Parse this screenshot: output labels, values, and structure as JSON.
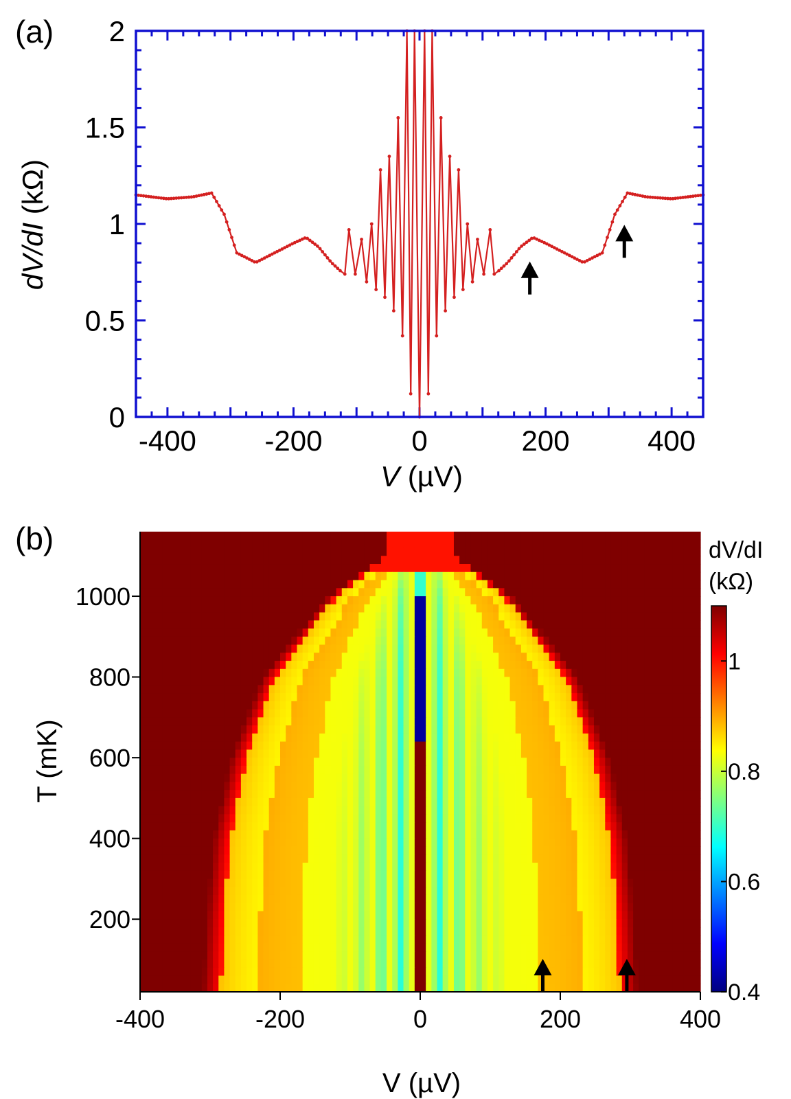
{
  "chart_data": [
    {
      "panel_label": "(a)",
      "type": "line",
      "xlabel_italic": "V",
      "xlabel_unit": " (µV)",
      "ylabel_italic": "dV/dI",
      "ylabel_unit": " (kΩ)",
      "xlim": [
        -450,
        450
      ],
      "ylim": [
        0,
        2
      ],
      "xticks": [
        -400,
        -200,
        0,
        200,
        400
      ],
      "yticks": [
        0,
        0.5,
        1,
        1.5,
        2
      ],
      "ytick_labels": [
        "0",
        "0.5",
        "1",
        "1.5",
        "2"
      ],
      "series_color": "#d42020",
      "frame_color": "#1010d0",
      "grid": false,
      "envelope": {
        "v": [
          0,
          30,
          60,
          80,
          100,
          120,
          140,
          160,
          180,
          200,
          230,
          260,
          290,
          310,
          330,
          360,
          400,
          450
        ],
        "base": [
          0.5,
          0.62,
          0.68,
          0.7,
          0.72,
          0.74,
          0.8,
          0.88,
          0.93,
          0.9,
          0.85,
          0.8,
          0.85,
          1.05,
          1.16,
          1.14,
          1.13,
          1.15
        ]
      },
      "oscillation_peaks_v": [
        8,
        20,
        34,
        48,
        62,
        76,
        92,
        112
      ],
      "oscillation_peaks_value": [
        2.0,
        2.0,
        1.55,
        1.35,
        1.28,
        1.0,
        0.92,
        0.97
      ],
      "oscillation_dips_value": [
        0.05,
        0.12,
        0.42,
        0.55,
        0.62,
        0.66,
        0.7,
        0.74
      ],
      "annotations": [
        {
          "type": "arrow-up",
          "x": 175,
          "y": 0.67
        },
        {
          "type": "arrow-up",
          "x": 325,
          "y": 0.86
        }
      ]
    },
    {
      "panel_label": "(b)",
      "type": "heatmap",
      "xlabel": "V (µV)",
      "ylabel": "T (mK)",
      "xlim": [
        -400,
        400
      ],
      "ylim": [
        20,
        1160
      ],
      "xticks": [
        -400,
        -200,
        0,
        200,
        400
      ],
      "yticks": [
        200,
        400,
        600,
        800,
        1000
      ],
      "colorbar_label_line1": "dV/dI",
      "colorbar_label_line2": "(kΩ)",
      "colorbar_range": [
        0.4,
        1.1
      ],
      "colorbar_ticks": [
        0.4,
        0.6,
        0.8,
        1
      ],
      "colormap": [
        "#00007f",
        "#0000ff",
        "#0080ff",
        "#00ffff",
        "#80ff80",
        "#ffff00",
        "#ff8000",
        "#ff0000",
        "#7f0000"
      ],
      "gap_edge_mK": [
        [
          20,
          310
        ],
        [
          200,
          305
        ],
        [
          400,
          295
        ],
        [
          600,
          270
        ],
        [
          800,
          225
        ],
        [
          1000,
          130
        ],
        [
          1100,
          50
        ]
      ],
      "annotations": [
        {
          "type": "arrow-up",
          "x": 175,
          "y": 30
        },
        {
          "type": "arrow-up",
          "x": 295,
          "y": 30
        }
      ]
    }
  ]
}
